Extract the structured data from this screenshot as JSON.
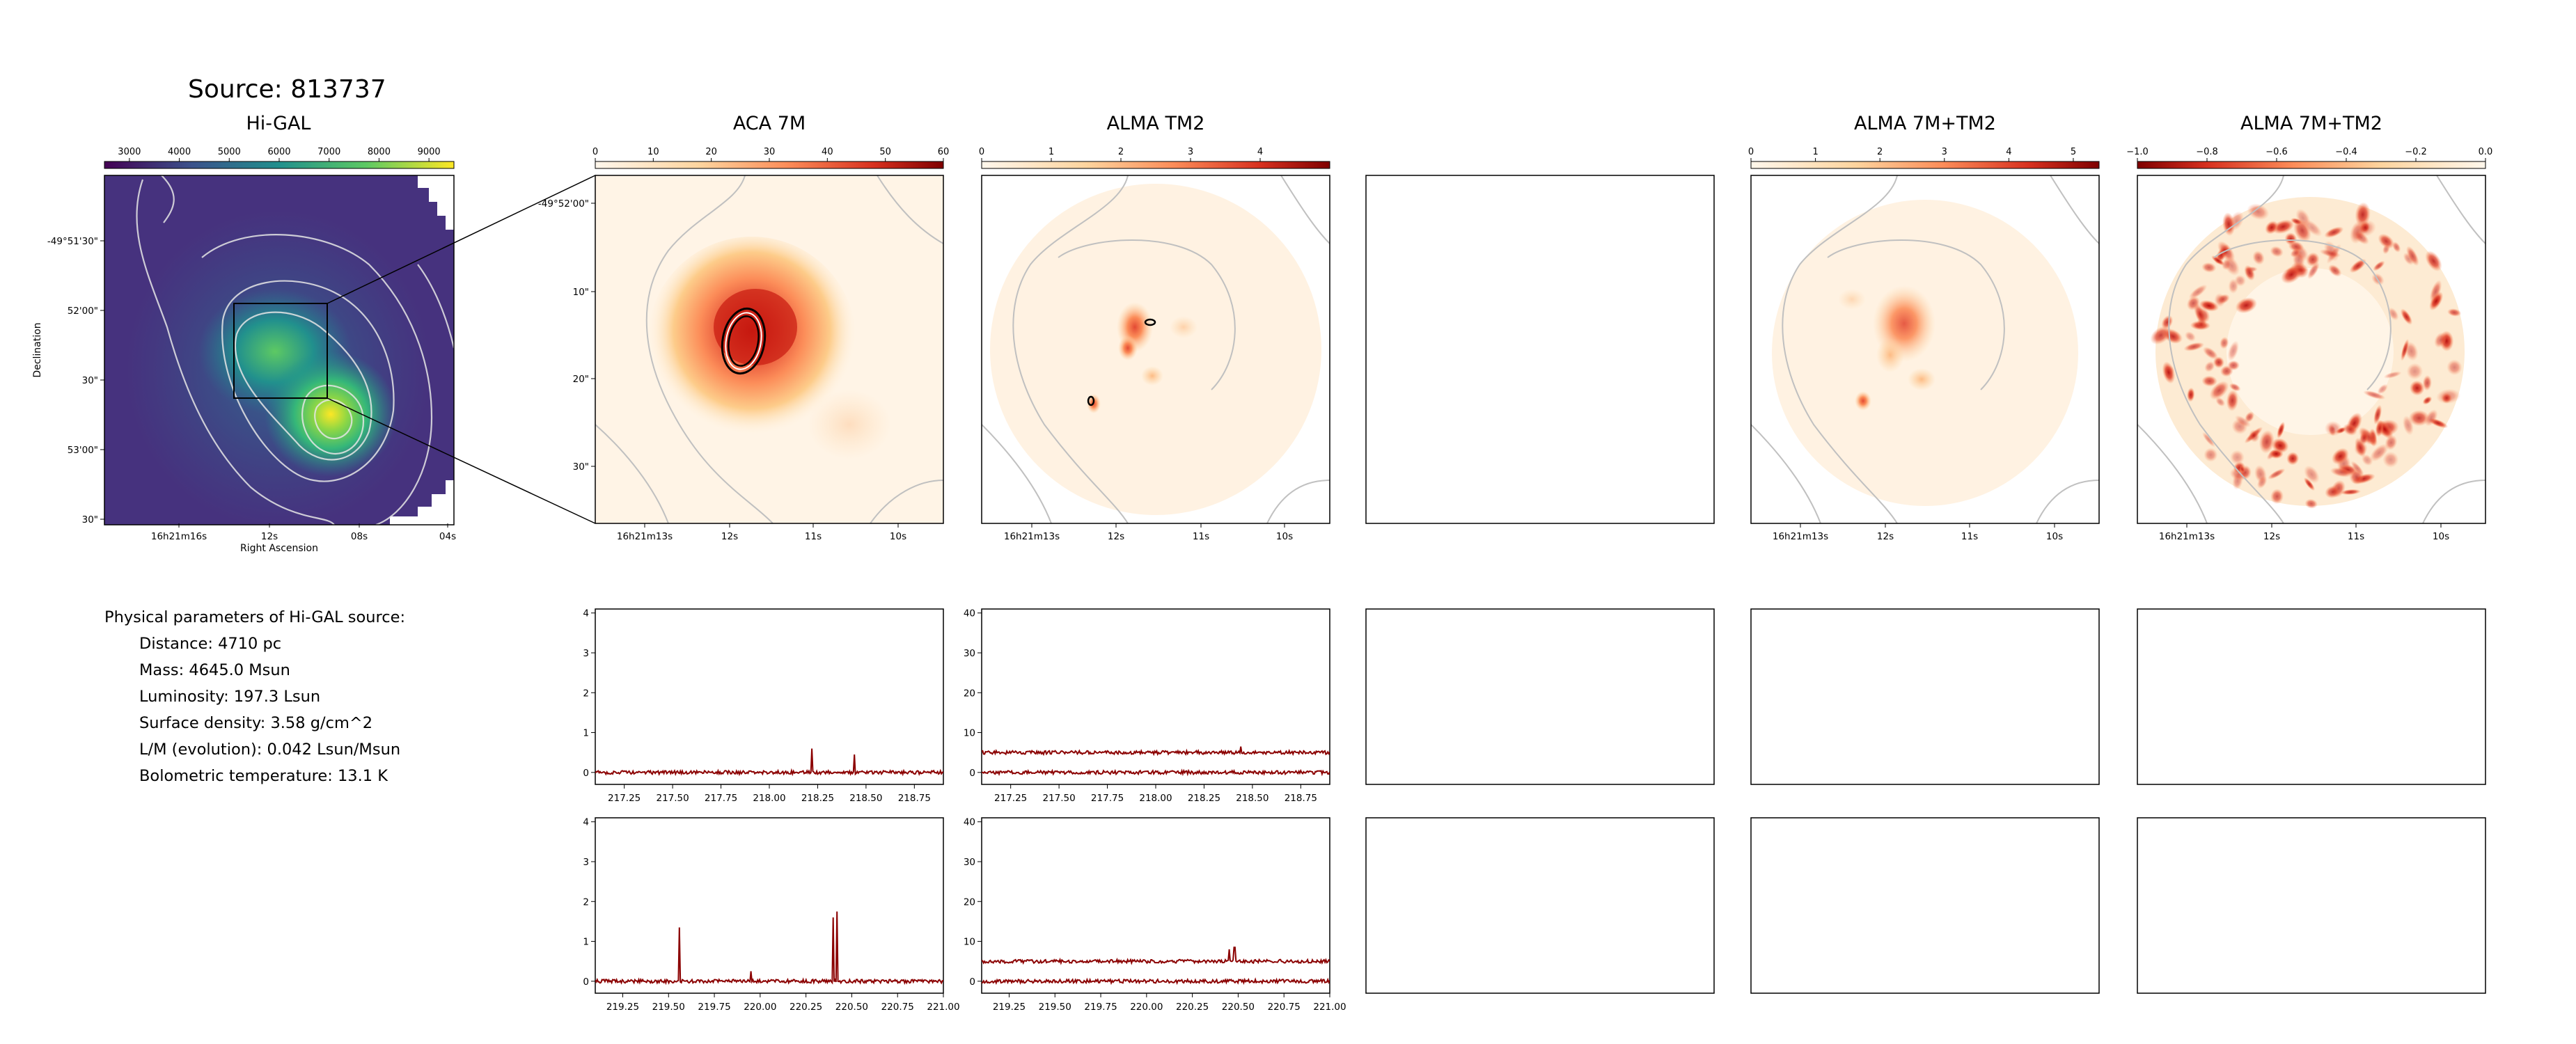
{
  "source_title": "Source: 813737",
  "panels": {
    "higal": {
      "title": "Hi-GAL"
    },
    "aca7m": {
      "title": "ACA 7M"
    },
    "tm2": {
      "title": "ALMA TM2"
    },
    "combined": {
      "title": "ALMA 7M+TM2"
    },
    "residual": {
      "title": "ALMA 7M+TM2"
    }
  },
  "params": {
    "heading": "Physical parameters of Hi-GAL source:",
    "lines": [
      "Distance: 4710 pc",
      "Mass: 4645.0 Msun",
      "Luminosity: 197.3 Lsun",
      "Surface density: 3.58 g/cm^2",
      "L/M (evolution): 0.042 Lsun/Msun",
      "Bolometric temperature: 13.1 K"
    ]
  },
  "colors": {
    "viridis": [
      "#440154",
      "#3b528b",
      "#21908d",
      "#5dc963",
      "#fde725"
    ],
    "orrd": [
      "#fff7ec",
      "#fdd49e",
      "#fc8d59",
      "#d7301f",
      "#7f0000"
    ],
    "spectrum": "#8b0000"
  },
  "chart_data": [
    {
      "type": "heatmap",
      "id": "higal",
      "title": "Hi-GAL",
      "xlabel": "Right Ascension",
      "ylabel": "Declination",
      "x_ticks": [
        "16h21m16s",
        "12s",
        "08s",
        "04s"
      ],
      "y_ticks": [
        "-49°51'30\"",
        "52'00\"",
        "30\"",
        "53'00\"",
        "30\""
      ],
      "colorbar_ticks": [
        "3000",
        "4000",
        "5000",
        "6000",
        "7000",
        "8000",
        "9000"
      ],
      "colorbar_range": [
        2500,
        9500
      ]
    },
    {
      "type": "heatmap",
      "id": "aca7m",
      "title": "ACA 7M",
      "x_ticks": [
        "16h21m13s",
        "12s",
        "11s",
        "10s"
      ],
      "y_ticks": [
        "-49°52'00\"",
        "10\"",
        "20\"",
        "30\""
      ],
      "colorbar_ticks": [
        "0",
        "10",
        "20",
        "30",
        "40",
        "50",
        "60"
      ],
      "colorbar_range": [
        0,
        60
      ]
    },
    {
      "type": "heatmap",
      "id": "tm2",
      "title": "ALMA TM2",
      "x_ticks": [
        "16h21m13s",
        "12s",
        "11s",
        "10s"
      ],
      "colorbar_ticks": [
        "0",
        "1",
        "2",
        "3",
        "4"
      ],
      "colorbar_range": [
        0,
        5
      ]
    },
    {
      "type": "heatmap",
      "id": "combined",
      "title": "ALMA 7M+TM2",
      "x_ticks": [
        "16h21m13s",
        "12s",
        "11s",
        "10s"
      ],
      "colorbar_ticks": [
        "0",
        "1",
        "2",
        "3",
        "4",
        "5"
      ],
      "colorbar_range": [
        0,
        5.4
      ]
    },
    {
      "type": "heatmap",
      "id": "residual",
      "title": "ALMA 7M+TM2",
      "x_ticks": [
        "16h21m13s",
        "12s",
        "11s",
        "10s"
      ],
      "colorbar_ticks": [
        "−1.0",
        "−0.8",
        "−0.6",
        "−0.4",
        "−0.2",
        "0.0"
      ],
      "colorbar_range": [
        -1.0,
        0.0
      ]
    },
    {
      "type": "line",
      "id": "spec-aca-upper",
      "xlim": [
        217.1,
        218.9
      ],
      "ylim": [
        -0.3,
        4.1
      ],
      "x_ticks": [
        "217.25",
        "217.50",
        "217.75",
        "218.00",
        "218.25",
        "218.50",
        "218.75"
      ],
      "y_ticks": [
        "0",
        "1",
        "2",
        "3",
        "4"
      ],
      "baselines": [
        0.0
      ],
      "peaks": [
        {
          "x": 218.22,
          "y": 0.6
        },
        {
          "x": 218.44,
          "y": 0.45
        }
      ]
    },
    {
      "type": "line",
      "id": "spec-tm2-upper",
      "xlim": [
        217.1,
        218.9
      ],
      "ylim": [
        -3,
        41
      ],
      "x_ticks": [
        "217.25",
        "217.50",
        "217.75",
        "218.00",
        "218.25",
        "218.50",
        "218.75"
      ],
      "y_ticks": [
        "0",
        "10",
        "20",
        "30",
        "40"
      ],
      "baselines": [
        0.0,
        5.0
      ],
      "peaks": [
        {
          "x": 218.44,
          "y": 6.5
        }
      ]
    },
    {
      "type": "line",
      "id": "spec-aca-lower",
      "xlim": [
        219.1,
        221.0
      ],
      "ylim": [
        -0.3,
        4.1
      ],
      "x_ticks": [
        "219.25",
        "219.50",
        "219.75",
        "220.00",
        "220.25",
        "220.50",
        "220.75",
        "221.00"
      ],
      "y_ticks": [
        "0",
        "1",
        "2",
        "3",
        "4"
      ],
      "baselines": [
        0.0
      ],
      "peaks": [
        {
          "x": 219.56,
          "y": 1.35
        },
        {
          "x": 219.95,
          "y": 0.25
        },
        {
          "x": 220.4,
          "y": 1.6
        },
        {
          "x": 220.42,
          "y": 1.75
        }
      ]
    },
    {
      "type": "line",
      "id": "spec-tm2-lower",
      "xlim": [
        219.1,
        221.0
      ],
      "ylim": [
        -3,
        41
      ],
      "x_ticks": [
        "219.25",
        "219.50",
        "219.75",
        "220.00",
        "220.25",
        "220.50",
        "220.75",
        "221.00"
      ],
      "y_ticks": [
        "0",
        "10",
        "20",
        "30",
        "40"
      ],
      "baselines": [
        0.0,
        5.0
      ],
      "peaks": [
        {
          "x": 220.45,
          "y": 8
        },
        {
          "x": 220.48,
          "y": 8.5
        }
      ]
    }
  ]
}
